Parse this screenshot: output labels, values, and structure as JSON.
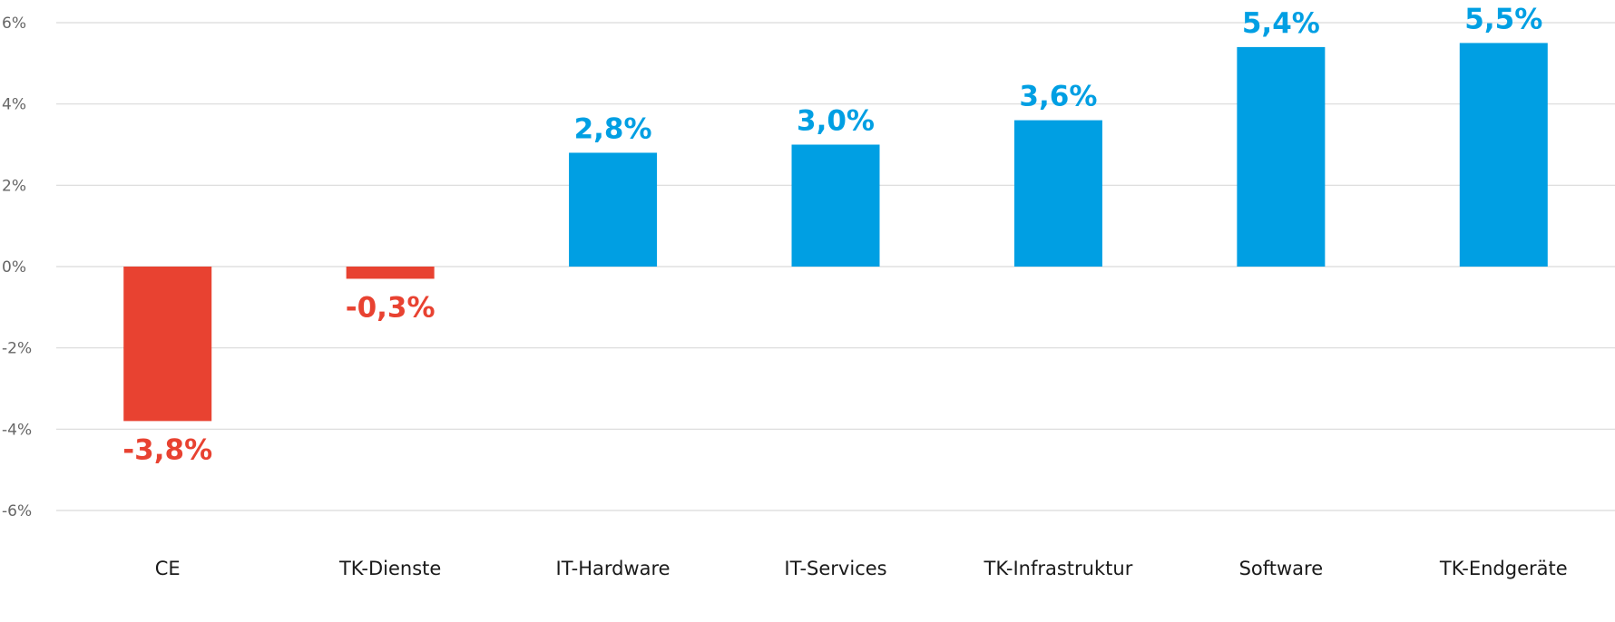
{
  "chart_data": {
    "type": "bar",
    "categories": [
      "CE",
      "TK-Dienste",
      "IT-Hardware",
      "IT-Services",
      "TK-Infrastruktur",
      "Software",
      "TK-Endgeräte"
    ],
    "values": [
      -3.8,
      -0.3,
      2.8,
      3.0,
      3.6,
      5.4,
      5.5
    ],
    "value_labels": [
      "-3,8%",
      "-0,3%",
      "2,8%",
      "3,0%",
      "3,6%",
      "5,4%",
      "5,5%"
    ],
    "title": "",
    "xlabel": "",
    "ylabel": "",
    "ylim": [
      -6,
      6
    ],
    "yticks": [
      6,
      4,
      2,
      0,
      -2,
      -4,
      -6
    ],
    "ytick_labels": [
      "6%",
      "4%",
      "2%",
      "0%",
      "-2%",
      "-4%",
      "-6%"
    ],
    "grid": true,
    "colors": {
      "positive": "#009fe3",
      "negative": "#e84231",
      "grid": "#d9d9d9",
      "tick_text": "#666666",
      "category_text": "#1a1a1a"
    }
  }
}
